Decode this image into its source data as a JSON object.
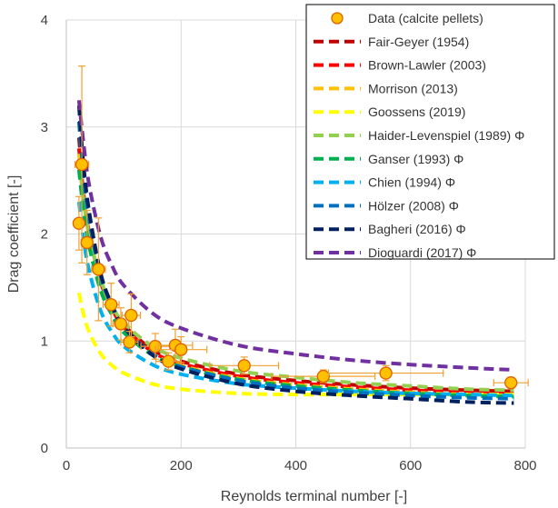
{
  "chart_data": {
    "type": "scatter",
    "xlabel": "Reynolds terminal number [-]",
    "ylabel": "Drag coefficient [-]",
    "xlim": [
      0,
      800
    ],
    "ylim": [
      0,
      4
    ],
    "xticks": [
      0,
      200,
      400,
      600,
      800
    ],
    "yticks": [
      0,
      1,
      2,
      3,
      4
    ],
    "grid": true,
    "legend_position": "top-right",
    "data_series": {
      "name": "Data (calcite pellets)",
      "color": "#FFC000",
      "edge_color": "#E06000",
      "errorbar_color": "#F0A030",
      "points": [
        {
          "x": 22,
          "y": 2.1,
          "xerr": 5,
          "yerr": 0.25
        },
        {
          "x": 27,
          "y": 2.65,
          "xerr": 12,
          "yerr": 0.92
        },
        {
          "x": 36,
          "y": 1.92,
          "xerr": 10,
          "yerr": 0.3
        },
        {
          "x": 56,
          "y": 1.67,
          "xerr": 12,
          "yerr": 0.48
        },
        {
          "x": 78,
          "y": 1.34,
          "xerr": 14,
          "yerr": 0.2
        },
        {
          "x": 95,
          "y": 1.16,
          "xerr": 14,
          "yerr": 0.15
        },
        {
          "x": 110,
          "y": 0.99,
          "xerr": 15,
          "yerr": 0.1
        },
        {
          "x": 113,
          "y": 1.24,
          "xerr": 16,
          "yerr": 0.2
        },
        {
          "x": 155,
          "y": 0.95,
          "xerr": 25,
          "yerr": 0.12
        },
        {
          "x": 178,
          "y": 0.81,
          "xerr": 22,
          "yerr": 0.08
        },
        {
          "x": 190,
          "y": 0.96,
          "xerr": 30,
          "yerr": 0.15
        },
        {
          "x": 200,
          "y": 0.92,
          "xerr": 45,
          "yerr": 0.12
        },
        {
          "x": 310,
          "y": 0.77,
          "xerr": 60,
          "yerr": 0.08
        },
        {
          "x": 448,
          "y": 0.67,
          "xerr": 90,
          "yerr": 0.06
        },
        {
          "x": 557,
          "y": 0.7,
          "xerr": 100,
          "yerr": 0.07
        },
        {
          "x": 775,
          "y": 0.61,
          "xerr": 30,
          "yerr": 0.05
        }
      ]
    },
    "model_series": [
      {
        "name": "Fair-Geyer (1954)",
        "color": "#C00000",
        "x": [
          22,
          30,
          40,
          60,
          80,
          100,
          150,
          200,
          300,
          400,
          500,
          600,
          700,
          780
        ],
        "y": [
          2.9,
          2.45,
          2.05,
          1.58,
          1.32,
          1.15,
          0.92,
          0.81,
          0.69,
          0.63,
          0.59,
          0.56,
          0.54,
          0.53
        ]
      },
      {
        "name": "Brown-Lawler (2003)",
        "color": "#FF0000",
        "x": [
          22,
          30,
          40,
          60,
          80,
          100,
          150,
          200,
          300,
          400,
          500,
          600,
          700,
          780
        ],
        "y": [
          2.8,
          2.38,
          2.0,
          1.55,
          1.3,
          1.13,
          0.9,
          0.79,
          0.67,
          0.61,
          0.57,
          0.54,
          0.52,
          0.51
        ]
      },
      {
        "name": "Morrison (2013)",
        "color": "#FFC000",
        "x": [
          22,
          30,
          40,
          60,
          80,
          100,
          150,
          200,
          300,
          400,
          500,
          600,
          700,
          780
        ],
        "y": [
          2.75,
          2.32,
          1.96,
          1.52,
          1.27,
          1.1,
          0.88,
          0.77,
          0.65,
          0.59,
          0.55,
          0.52,
          0.5,
          0.49
        ]
      },
      {
        "name": "Goossens (2019)",
        "color": "#FFFF00",
        "x": [
          22,
          30,
          40,
          60,
          80,
          100,
          150,
          200,
          300,
          400,
          500,
          600,
          700,
          780
        ],
        "y": [
          1.45,
          1.25,
          1.08,
          0.88,
          0.77,
          0.7,
          0.6,
          0.55,
          0.51,
          0.5,
          0.5,
          0.5,
          0.5,
          0.5
        ]
      },
      {
        "name": "Haider-Levenspiel (1989) Φ",
        "color": "#92D050",
        "x": [
          22,
          30,
          40,
          60,
          80,
          100,
          150,
          200,
          300,
          400,
          500,
          600,
          700,
          780
        ],
        "y": [
          2.7,
          2.32,
          1.98,
          1.57,
          1.33,
          1.17,
          0.95,
          0.84,
          0.72,
          0.66,
          0.61,
          0.58,
          0.55,
          0.54
        ]
      },
      {
        "name": "Ganser (1993) Φ",
        "color": "#00B050",
        "x": [
          22,
          30,
          40,
          60,
          80,
          100,
          150,
          200,
          300,
          400,
          500,
          600,
          700,
          780
        ],
        "y": [
          2.6,
          2.22,
          1.88,
          1.47,
          1.24,
          1.08,
          0.87,
          0.76,
          0.64,
          0.58,
          0.54,
          0.51,
          0.49,
          0.48
        ]
      },
      {
        "name": "Chien (1994) Φ",
        "color": "#00B0F0",
        "x": [
          22,
          30,
          40,
          60,
          80,
          100,
          150,
          200,
          300,
          400,
          500,
          600,
          700,
          780
        ],
        "y": [
          2.3,
          1.95,
          1.65,
          1.28,
          1.08,
          0.95,
          0.78,
          0.69,
          0.6,
          0.56,
          0.53,
          0.51,
          0.5,
          0.49
        ]
      },
      {
        "name": "Hölzer (2008) Φ",
        "color": "#0070C0",
        "x": [
          22,
          30,
          40,
          60,
          80,
          100,
          150,
          200,
          300,
          400,
          500,
          600,
          700,
          780
        ],
        "y": [
          3.05,
          2.55,
          2.12,
          1.6,
          1.32,
          1.13,
          0.88,
          0.76,
          0.63,
          0.56,
          0.52,
          0.49,
          0.47,
          0.46
        ]
      },
      {
        "name": "Bagheri (2016) Φ",
        "color": "#002060",
        "x": [
          22,
          30,
          40,
          60,
          80,
          100,
          150,
          200,
          300,
          400,
          500,
          600,
          700,
          780
        ],
        "y": [
          3.2,
          2.65,
          2.2,
          1.63,
          1.33,
          1.13,
          0.87,
          0.74,
          0.6,
          0.53,
          0.49,
          0.46,
          0.43,
          0.42
        ]
      },
      {
        "name": "Dioguardi (2017) Φ",
        "color": "#7030A0",
        "x": [
          22,
          30,
          40,
          60,
          80,
          100,
          150,
          200,
          300,
          400,
          500,
          600,
          700,
          780
        ],
        "y": [
          3.25,
          2.85,
          2.45,
          1.97,
          1.7,
          1.52,
          1.26,
          1.12,
          0.96,
          0.88,
          0.82,
          0.78,
          0.75,
          0.73
        ]
      }
    ]
  }
}
